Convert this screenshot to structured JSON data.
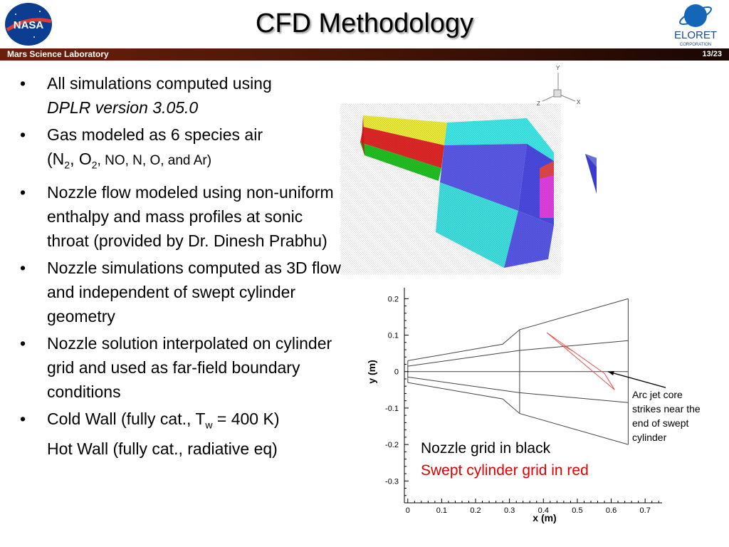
{
  "header": {
    "title": "CFD Methodology",
    "banner_left": "Mars Science Laboratory",
    "page": "13/23",
    "nasa_logo_text": "NASA",
    "eloret_logo_text": "ELORET",
    "eloret_logo_sub": "CORPORATION"
  },
  "bullets": [
    {
      "line1": "All simulations computed using",
      "line2": "DPLR version 3.05.0"
    },
    {
      "line1": "Gas modeled as 6 species air",
      "p1": "(N",
      "s1": "2",
      "p2": ", O",
      "s2": "2",
      "p3": ", NO, N, O, and Ar)"
    },
    {
      "text": "Nozzle flow modeled using non-uniform enthalpy and mass profiles at sonic throat (provided by Dr. Dinesh Prabhu)"
    },
    {
      "text": "Nozzle simulations computed as 3D flow and independent of swept cylinder geometry"
    },
    {
      "text": "Nozzle solution interpolated on cylinder grid and used as far-field boundary conditions"
    },
    {
      "p1": "Cold Wall (fully cat., T",
      "sub": "w",
      "p2": " = 400 K)",
      "line2": "Hot Wall (fully cat., radiative eq)"
    }
  ],
  "axes_triad": {
    "y": "Y",
    "x": "X",
    "z": "Z"
  },
  "chart_data": {
    "type": "line",
    "xlabel": "x (m)",
    "ylabel": "y (m)",
    "xlim": [
      0,
      0.7
    ],
    "ylim": [
      -0.3,
      0.2
    ],
    "x_ticks": [
      "0",
      "0.1",
      "0.2",
      "0.3",
      "0.4",
      "0.5",
      "0.6",
      "0.7"
    ],
    "y_ticks": [
      "0.2",
      "0.1",
      "0",
      "-0.1",
      "-0.2",
      "-0.3"
    ],
    "series": [
      {
        "color": "#444444",
        "segments": [
          [
            [
              0,
              0.03
            ],
            [
              0.28,
              0.075
            ],
            [
              0.33,
              0.115
            ],
            [
              0.65,
              0.2
            ]
          ],
          [
            [
              0,
              -0.03
            ],
            [
              0.28,
              -0.075
            ],
            [
              0.33,
              -0.115
            ],
            [
              0.65,
              -0.2
            ]
          ],
          [
            [
              0,
              0.015
            ],
            [
              0.33,
              0.058
            ],
            [
              0.65,
              0.085
            ]
          ],
          [
            [
              0,
              -0.015
            ],
            [
              0.33,
              -0.058
            ],
            [
              0.65,
              -0.085
            ]
          ],
          [
            [
              0,
              0
            ],
            [
              0.65,
              0
            ]
          ],
          [
            [
              0,
              0.03
            ],
            [
              0,
              -0.03
            ]
          ],
          [
            [
              0.33,
              0.115
            ],
            [
              0.33,
              -0.115
            ]
          ],
          [
            [
              0.65,
              0.2
            ],
            [
              0.65,
              -0.2
            ]
          ]
        ]
      },
      {
        "color": "#e85050",
        "segments": [
          [
            [
              0.41,
              0.107
            ],
            [
              0.61,
              -0.05
            ],
            [
              0.58,
              -0.005
            ],
            [
              0.41,
              0.107
            ]
          ],
          [
            [
              0.45,
              0.075
            ],
            [
              0.49,
              0.055
            ]
          ]
        ]
      }
    ],
    "arrow": {
      "from": [
        0.765,
        -0.045
      ],
      "to": [
        0.59,
        0.0
      ]
    },
    "annotation": [
      "Arc jet core",
      "strikes near the",
      "end of swept",
      "cylinder"
    ],
    "legend": [
      {
        "text": "Nozzle grid in black",
        "color": "#000000"
      },
      {
        "text": "Swept cylinder grid in red",
        "color": "#e00000"
      }
    ]
  }
}
